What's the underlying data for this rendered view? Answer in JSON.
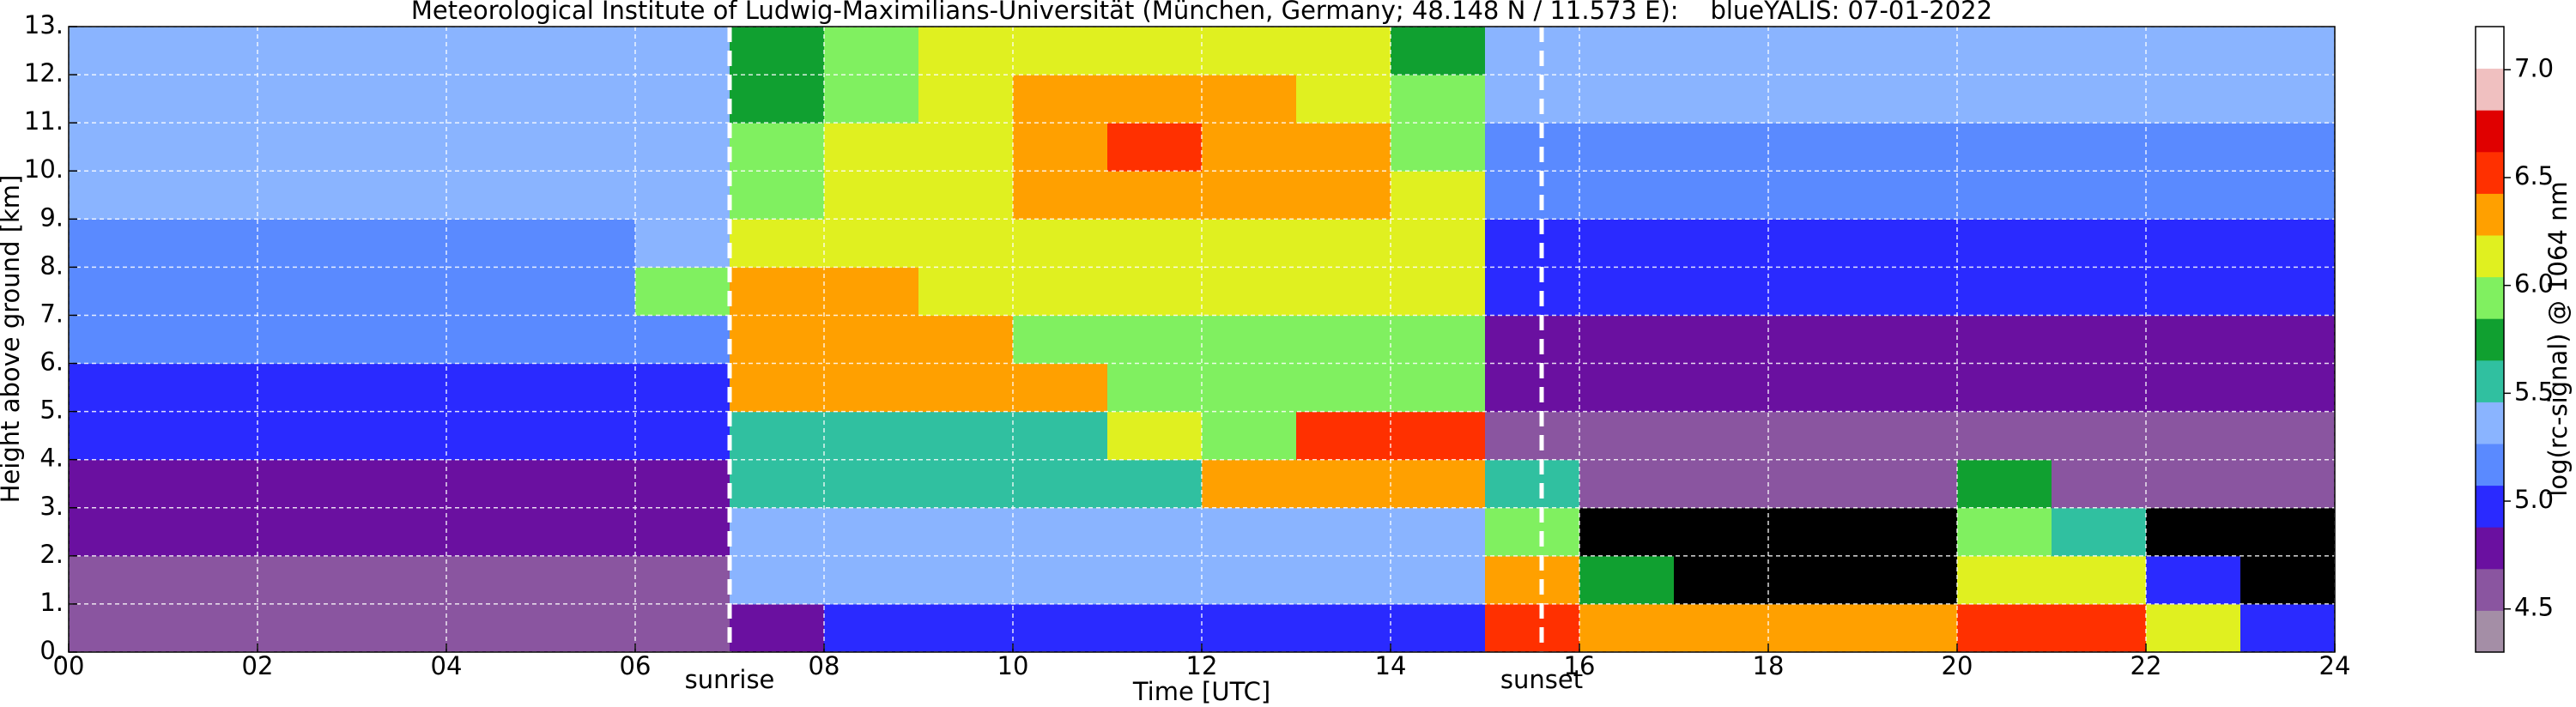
{
  "chart_data": {
    "type": "heatmap",
    "title": "Meteorological Institute of Ludwig-Maximilians-Universität (München, Germany; 48.148 N / 11.573 E):    blueYALIS: 07-01-2022",
    "x_label": "Time [UTC]",
    "y_label": "Height above ground [km]",
    "colorbar_label": "log(rc-signal) @ 1064 nm",
    "xlim": [
      0,
      24
    ],
    "xticks": [
      {
        "value": 0,
        "label": "00"
      },
      {
        "value": 2,
        "label": "02"
      },
      {
        "value": 4,
        "label": "04"
      },
      {
        "value": 6,
        "label": "06"
      },
      {
        "value": 8,
        "label": "08"
      },
      {
        "value": 10,
        "label": "10"
      },
      {
        "value": 12,
        "label": "12"
      },
      {
        "value": 14,
        "label": "14"
      },
      {
        "value": 16,
        "label": "16"
      },
      {
        "value": 18,
        "label": "18"
      },
      {
        "value": 20,
        "label": "20"
      },
      {
        "value": 22,
        "label": "22"
      },
      {
        "value": 24,
        "label": "24"
      }
    ],
    "ylim": [
      0,
      13
    ],
    "yticks": [
      {
        "value": 0,
        "label": "0."
      },
      {
        "value": 1,
        "label": "1."
      },
      {
        "value": 2,
        "label": "2."
      },
      {
        "value": 3,
        "label": "3."
      },
      {
        "value": 4,
        "label": "4."
      },
      {
        "value": 5,
        "label": "5."
      },
      {
        "value": 6,
        "label": "6."
      },
      {
        "value": 7,
        "label": "7."
      },
      {
        "value": 8,
        "label": "8."
      },
      {
        "value": 9,
        "label": "9."
      },
      {
        "value": 10,
        "label": "10."
      },
      {
        "value": 11,
        "label": "11."
      },
      {
        "value": 12,
        "label": "12."
      },
      {
        "value": 13,
        "label": "13."
      }
    ],
    "clim": [
      4.3,
      7.2
    ],
    "cticks": [
      4.5,
      {
        "value": 5,
        "label": "5.0"
      },
      5.5,
      {
        "value": 6,
        "label": "6.0"
      },
      6.5,
      {
        "value": 7,
        "label": "7.0"
      }
    ],
    "colormap": [
      "#a48ea6",
      "#8a55a0",
      "#6a10a0",
      "#2a2aff",
      "#5a8aff",
      "#8ab4ff",
      "#30c0a0",
      "#10a030",
      "#80f060",
      "#e0f020",
      "#ffa000",
      "#ff3000",
      "#e00000",
      "#f0c0c0",
      "#ffffff"
    ],
    "under_color": "#000000",
    "grid": true,
    "annotations": [
      {
        "text": "sunrise",
        "x": 7.0
      },
      {
        "text": "sunset",
        "x": 15.6
      }
    ],
    "z": [
      [
        4.6,
        4.6,
        4.6,
        4.6,
        4.6,
        4.6,
        4.6,
        4.8,
        4.9,
        4.9,
        4.9,
        4.9,
        4.9,
        4.9,
        4.9,
        6.6,
        6.4,
        6.4,
        6.4,
        6.4,
        6.6,
        6.6,
        6.2,
        4.9
      ],
      [
        4.5,
        4.5,
        4.5,
        4.5,
        4.5,
        4.5,
        4.5,
        5.3,
        5.3,
        5.3,
        5.3,
        5.3,
        5.3,
        5.3,
        5.3,
        6.3,
        5.8,
        4.2,
        4.2,
        4.2,
        6.2,
        6.2,
        5.0,
        4.2
      ],
      [
        4.7,
        4.7,
        4.7,
        4.7,
        4.7,
        4.7,
        4.7,
        5.4,
        5.4,
        5.4,
        5.4,
        5.4,
        5.4,
        5.4,
        5.4,
        6.0,
        4.2,
        4.2,
        4.2,
        4.2,
        6.0,
        5.5,
        4.2,
        4.2
      ],
      [
        4.8,
        4.8,
        4.8,
        4.8,
        4.8,
        4.8,
        4.8,
        5.5,
        5.5,
        5.5,
        5.5,
        5.5,
        6.3,
        6.3,
        6.4,
        5.5,
        4.5,
        4.5,
        4.5,
        4.5,
        5.8,
        4.5,
        4.5,
        4.5
      ],
      [
        4.9,
        4.9,
        4.9,
        4.9,
        4.9,
        4.9,
        4.9,
        5.5,
        5.5,
        5.5,
        5.5,
        6.2,
        6.0,
        6.5,
        6.5,
        4.6,
        4.6,
        4.6,
        4.6,
        4.6,
        4.6,
        4.6,
        4.6,
        4.6
      ],
      [
        5.0,
        5.0,
        5.0,
        5.0,
        5.0,
        5.0,
        5.0,
        6.3,
        6.3,
        6.3,
        6.4,
        6.0,
        6.0,
        6.0,
        6.0,
        4.7,
        4.7,
        4.7,
        4.7,
        4.7,
        4.7,
        4.7,
        4.7,
        4.7
      ],
      [
        5.1,
        5.1,
        5.1,
        5.1,
        5.1,
        5.1,
        5.1,
        6.3,
        6.3,
        6.3,
        6.0,
        6.0,
        6.0,
        6.0,
        6.0,
        4.8,
        4.8,
        4.8,
        4.8,
        4.8,
        4.8,
        4.8,
        4.8,
        4.8
      ],
      [
        5.2,
        5.2,
        5.2,
        5.2,
        5.2,
        5.2,
        5.9,
        6.3,
        6.3,
        6.1,
        6.1,
        6.1,
        6.1,
        6.1,
        6.1,
        4.9,
        4.9,
        4.9,
        4.9,
        4.9,
        4.9,
        4.9,
        4.9,
        4.9
      ],
      [
        5.2,
        5.2,
        5.2,
        5.2,
        5.2,
        5.2,
        5.3,
        6.1,
        6.2,
        6.1,
        6.1,
        6.2,
        6.2,
        6.2,
        6.1,
        5.0,
        5.0,
        5.0,
        5.0,
        5.0,
        5.0,
        5.0,
        5.0,
        5.0
      ],
      [
        5.3,
        5.3,
        5.3,
        5.3,
        5.3,
        5.3,
        5.3,
        6.0,
        6.1,
        6.2,
        6.3,
        6.4,
        6.4,
        6.3,
        6.1,
        5.1,
        5.1,
        5.1,
        5.1,
        5.1,
        5.1,
        5.1,
        5.1,
        5.1
      ],
      [
        5.3,
        5.3,
        5.3,
        5.3,
        5.3,
        5.3,
        5.3,
        5.9,
        6.1,
        6.2,
        6.4,
        6.5,
        6.4,
        6.3,
        6.0,
        5.2,
        5.2,
        5.2,
        5.2,
        5.2,
        5.2,
        5.2,
        5.2,
        5.2
      ],
      [
        5.4,
        5.4,
        5.4,
        5.4,
        5.4,
        5.4,
        5.4,
        5.8,
        6.0,
        6.2,
        6.3,
        6.4,
        6.3,
        6.2,
        5.9,
        5.3,
        5.3,
        5.3,
        5.3,
        5.3,
        5.3,
        5.3,
        5.3,
        5.3
      ],
      [
        5.4,
        5.4,
        5.4,
        5.4,
        5.4,
        5.4,
        5.4,
        5.7,
        5.9,
        6.1,
        6.2,
        6.2,
        6.2,
        6.1,
        5.8,
        5.4,
        5.4,
        5.4,
        5.4,
        5.4,
        5.4,
        5.4,
        5.4,
        5.4
      ]
    ]
  }
}
